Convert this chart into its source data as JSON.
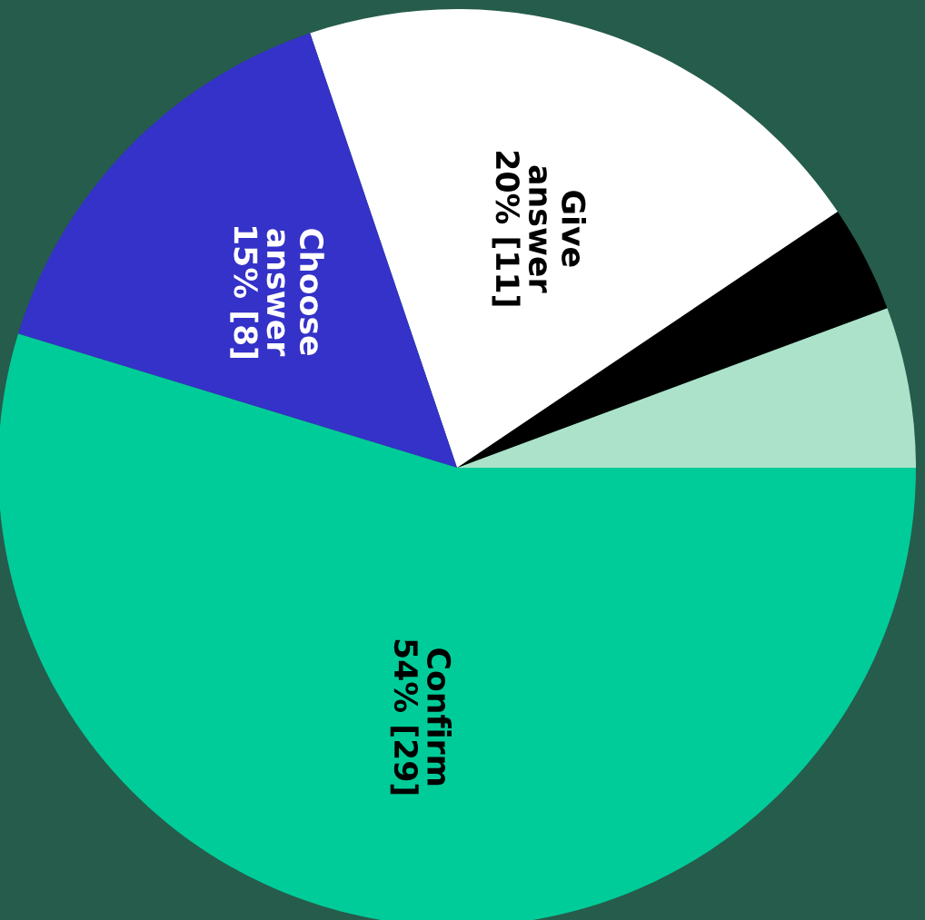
{
  "chart_data": {
    "type": "pie",
    "categories": [
      null,
      null,
      "Give\nanswer",
      "Choose\nanswer",
      "Confirm"
    ],
    "values": [
      3,
      2,
      11,
      8,
      29
    ],
    "value_labels": [
      null,
      null,
      "20% [11]",
      "15% [8]",
      "54% [29]"
    ],
    "colors": [
      "#ace2ca",
      "#000000",
      "#ffffff",
      "#3432c8",
      "#00cc99"
    ]
  }
}
